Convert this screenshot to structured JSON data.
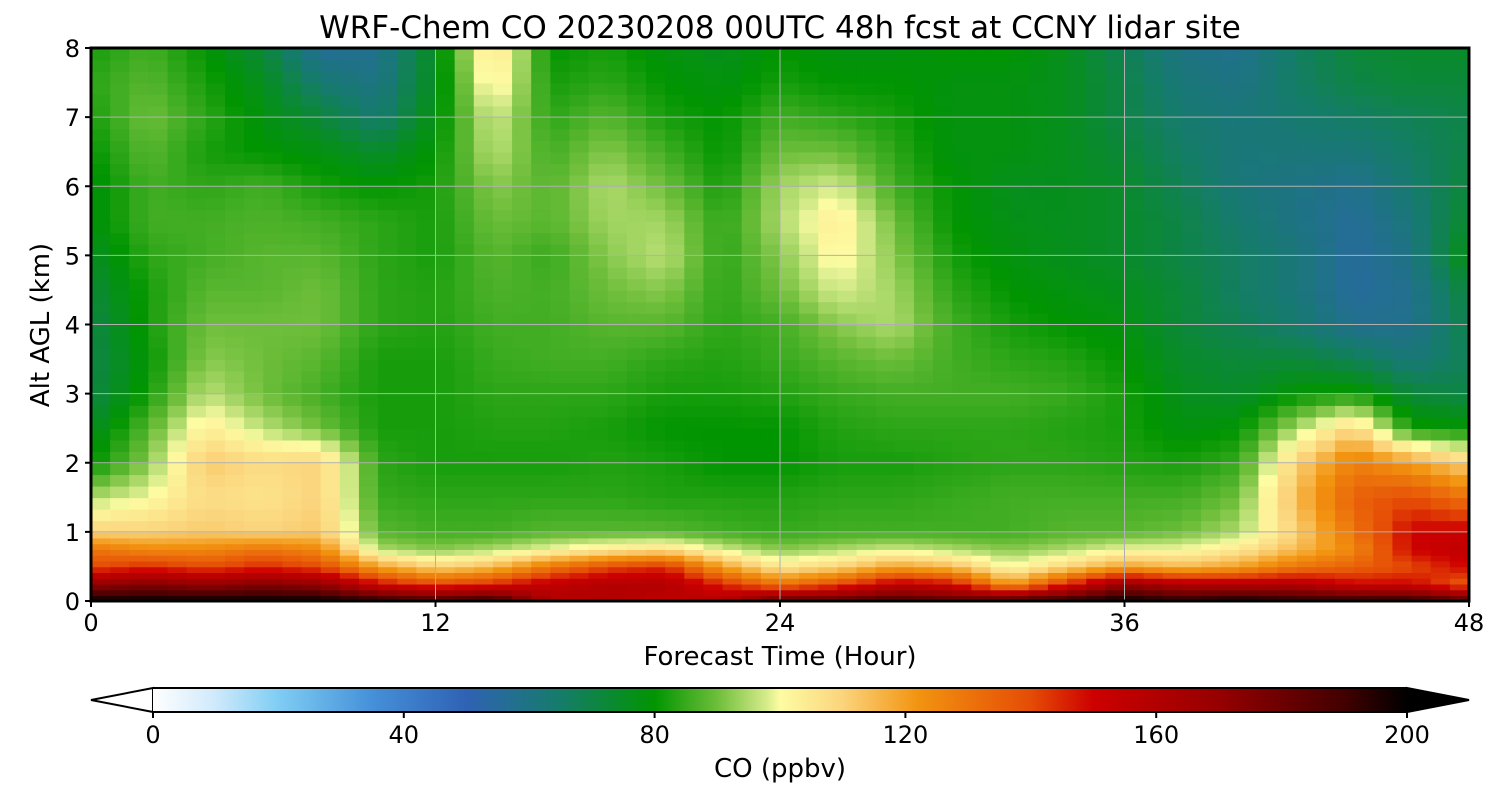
{
  "chart_data": {
    "type": "heatmap",
    "title": "WRF-Chem CO  20230208 00UTC 48h fcst at CCNY lidar site",
    "xlabel": "Forecast Time (Hour)",
    "ylabel": "Alt AGL (km)",
    "xlim": [
      0,
      48
    ],
    "ylim": [
      0,
      8
    ],
    "xticks": [
      0,
      12,
      24,
      36,
      48
    ],
    "yticks": [
      0,
      1,
      2,
      3,
      4,
      5,
      6,
      7,
      8
    ],
    "grid": true,
    "x": [
      0,
      2,
      4,
      6,
      8,
      10,
      12,
      14,
      16,
      18,
      20,
      22,
      24,
      26,
      28,
      30,
      32,
      34,
      36,
      38,
      40,
      42,
      44,
      46,
      48
    ],
    "y": [
      0.0,
      0.25,
      0.5,
      0.75,
      1.0,
      1.5,
      2.0,
      2.5,
      3.0,
      3.5,
      4.0,
      4.5,
      5.0,
      5.5,
      6.0,
      6.5,
      7.0,
      7.5,
      8.0
    ],
    "z": [
      [
        200,
        200,
        200,
        200,
        200,
        195,
        190,
        195,
        160,
        160,
        155,
        160,
        185,
        185,
        190,
        185,
        190,
        195,
        200,
        195,
        200,
        195,
        195,
        195,
        185
      ],
      [
        170,
        175,
        170,
        175,
        170,
        150,
        140,
        145,
        155,
        160,
        160,
        145,
        130,
        140,
        155,
        150,
        120,
        145,
        170,
        160,
        160,
        160,
        150,
        150,
        135
      ],
      [
        140,
        145,
        140,
        145,
        140,
        120,
        110,
        115,
        130,
        140,
        145,
        120,
        105,
        110,
        120,
        115,
        100,
        110,
        120,
        115,
        120,
        130,
        135,
        140,
        150
      ],
      [
        130,
        125,
        125,
        130,
        125,
        95,
        92,
        95,
        100,
        105,
        108,
        98,
        92,
        95,
        98,
        95,
        92,
        95,
        100,
        100,
        105,
        115,
        125,
        150,
        155
      ],
      [
        110,
        110,
        112,
        110,
        112,
        88,
        86,
        86,
        88,
        88,
        88,
        86,
        85,
        86,
        86,
        86,
        86,
        88,
        88,
        90,
        95,
        110,
        130,
        150,
        152
      ],
      [
        95,
        100,
        108,
        106,
        110,
        85,
        84,
        84,
        84,
        84,
        83,
        83,
        83,
        84,
        84,
        85,
        86,
        86,
        86,
        86,
        90,
        115,
        135,
        140,
        130
      ],
      [
        80,
        92,
        112,
        108,
        110,
        84,
        82,
        82,
        82,
        83,
        82,
        80,
        80,
        82,
        82,
        83,
        84,
        84,
        83,
        82,
        85,
        110,
        128,
        120,
        110
      ],
      [
        75,
        88,
        104,
        96,
        90,
        82,
        82,
        83,
        83,
        82,
        80,
        80,
        80,
        83,
        84,
        84,
        84,
        83,
        82,
        78,
        80,
        95,
        110,
        82,
        80
      ],
      [
        70,
        82,
        96,
        90,
        86,
        82,
        82,
        84,
        84,
        84,
        82,
        82,
        83,
        85,
        86,
        86,
        86,
        85,
        82,
        76,
        74,
        80,
        82,
        72,
        70
      ],
      [
        70,
        80,
        92,
        90,
        88,
        82,
        82,
        85,
        86,
        86,
        84,
        83,
        85,
        88,
        90,
        86,
        84,
        83,
        80,
        74,
        72,
        72,
        68,
        62,
        68
      ],
      [
        70,
        82,
        90,
        90,
        90,
        84,
        83,
        86,
        86,
        88,
        88,
        84,
        86,
        92,
        95,
        86,
        82,
        80,
        78,
        72,
        68,
        64,
        58,
        58,
        70
      ],
      [
        72,
        82,
        88,
        88,
        90,
        84,
        83,
        87,
        86,
        90,
        92,
        84,
        90,
        98,
        94,
        84,
        80,
        78,
        76,
        72,
        66,
        62,
        55,
        58,
        72
      ],
      [
        75,
        84,
        86,
        88,
        88,
        84,
        82,
        88,
        85,
        92,
        96,
        84,
        92,
        102,
        92,
        82,
        78,
        76,
        74,
        70,
        66,
        62,
        55,
        60,
        78
      ],
      [
        78,
        86,
        86,
        87,
        86,
        84,
        82,
        90,
        88,
        94,
        94,
        84,
        95,
        104,
        90,
        80,
        77,
        76,
        74,
        70,
        64,
        60,
        56,
        62,
        74
      ],
      [
        78,
        86,
        84,
        86,
        82,
        80,
        82,
        92,
        88,
        95,
        90,
        82,
        94,
        98,
        86,
        80,
        76,
        76,
        74,
        68,
        62,
        60,
        58,
        64,
        72
      ],
      [
        80,
        88,
        82,
        80,
        78,
        74,
        80,
        96,
        86,
        92,
        86,
        80,
        90,
        90,
        84,
        78,
        78,
        76,
        72,
        66,
        62,
        62,
        62,
        66,
        70
      ],
      [
        82,
        90,
        84,
        78,
        72,
        64,
        78,
        98,
        84,
        88,
        82,
        80,
        86,
        84,
        82,
        78,
        78,
        76,
        70,
        64,
        62,
        64,
        66,
        68,
        70
      ],
      [
        84,
        88,
        82,
        76,
        64,
        60,
        76,
        104,
        82,
        84,
        80,
        78,
        82,
        80,
        80,
        78,
        78,
        76,
        70,
        62,
        60,
        66,
        70,
        72,
        72
      ],
      [
        82,
        86,
        80,
        72,
        56,
        58,
        76,
        108,
        80,
        82,
        78,
        76,
        80,
        78,
        78,
        80,
        80,
        76,
        68,
        60,
        58,
        66,
        72,
        74,
        74
      ]
    ],
    "colorbar": {
      "label": "CO  (ppbv)",
      "min": 0,
      "max": 200,
      "ticks": [
        0,
        40,
        80,
        120,
        160,
        200
      ],
      "extend": "both",
      "stops": [
        {
          "v": 0,
          "c": "#ffffff"
        },
        {
          "v": 10,
          "c": "#cfe9fb"
        },
        {
          "v": 20,
          "c": "#7fcdf4"
        },
        {
          "v": 35,
          "c": "#4590d8"
        },
        {
          "v": 50,
          "c": "#2f62b4"
        },
        {
          "v": 65,
          "c": "#157c6a"
        },
        {
          "v": 80,
          "c": "#019501"
        },
        {
          "v": 90,
          "c": "#6ebe3a"
        },
        {
          "v": 98,
          "c": "#d8ec8c"
        },
        {
          "v": 100,
          "c": "#fdfca3"
        },
        {
          "v": 110,
          "c": "#fbd47c"
        },
        {
          "v": 122,
          "c": "#f29410"
        },
        {
          "v": 140,
          "c": "#e54c06"
        },
        {
          "v": 150,
          "c": "#cd0000"
        },
        {
          "v": 170,
          "c": "#960000"
        },
        {
          "v": 190,
          "c": "#420000"
        },
        {
          "v": 200,
          "c": "#000000"
        }
      ]
    }
  }
}
